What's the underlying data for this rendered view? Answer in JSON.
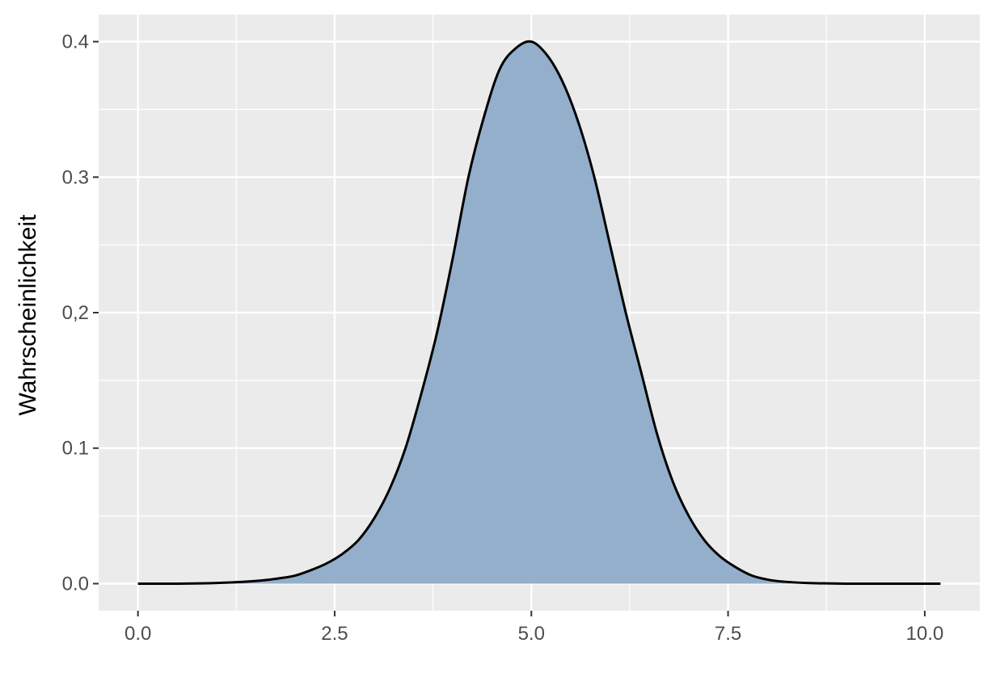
{
  "chart_data": {
    "type": "area",
    "title": "",
    "xlabel": "",
    "ylabel": "Wahrscheinlichkeit",
    "xlim": [
      -0.5,
      10.7
    ],
    "ylim": [
      -0.02,
      0.42
    ],
    "x_ticks": [
      {
        "value": 0,
        "label": "0.0"
      },
      {
        "value": 2.5,
        "label": "2.5"
      },
      {
        "value": 5,
        "label": "5.0"
      },
      {
        "value": 7.5,
        "label": "7.5"
      },
      {
        "value": 10,
        "label": "10.0"
      }
    ],
    "y_ticks": [
      {
        "value": 0,
        "label": "0.0"
      },
      {
        "value": 0.1,
        "label": "0.1"
      },
      {
        "value": 0.2,
        "label": "0,2"
      },
      {
        "value": 0.3,
        "label": "0.3"
      },
      {
        "value": 0.4,
        "label": "0.4"
      }
    ],
    "grid": true,
    "legend": "none",
    "colors": {
      "fill": "#8eacca",
      "line": "#000000",
      "panel": "#ebebeb",
      "grid": "#ffffff"
    },
    "series": [
      {
        "x": [
          0.0,
          0.5,
          1.0,
          1.5,
          1.8,
          2.0,
          2.2,
          2.4,
          2.6,
          2.8,
          3.0,
          3.2,
          3.4,
          3.6,
          3.8,
          4.0,
          4.2,
          4.4,
          4.6,
          4.8,
          5.0,
          5.2,
          5.4,
          5.6,
          5.8,
          6.0,
          6.2,
          6.4,
          6.6,
          6.8,
          7.0,
          7.2,
          7.4,
          7.6,
          7.8,
          8.0,
          8.2,
          8.5,
          9.0,
          9.5,
          10.2
        ],
        "y": [
          0.0,
          0.0,
          0.0005,
          0.002,
          0.004,
          0.006,
          0.01,
          0.015,
          0.022,
          0.032,
          0.048,
          0.07,
          0.1,
          0.14,
          0.185,
          0.24,
          0.3,
          0.345,
          0.38,
          0.395,
          0.4,
          0.39,
          0.37,
          0.34,
          0.3,
          0.25,
          0.2,
          0.155,
          0.11,
          0.075,
          0.05,
          0.032,
          0.02,
          0.012,
          0.006,
          0.003,
          0.0015,
          0.0005,
          0.0,
          0.0,
          0.0
        ]
      }
    ]
  }
}
